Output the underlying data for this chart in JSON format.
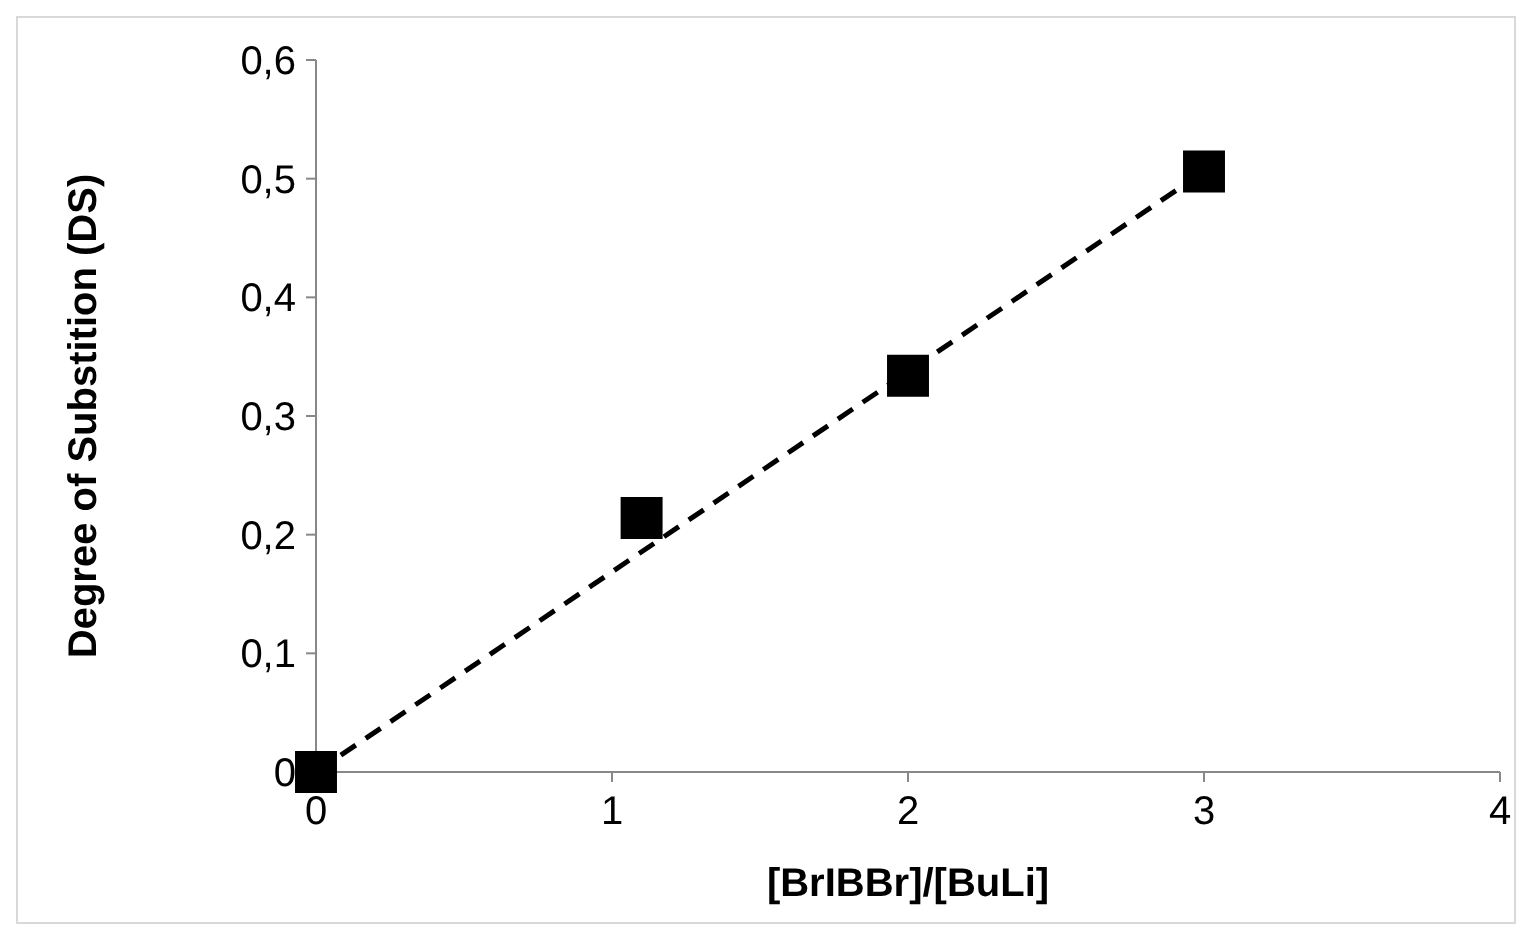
{
  "chart_data": {
    "type": "scatter",
    "xlabel": "[BrIBBr]/[BuLi]",
    "ylabel": "Degree of Substition (DS)",
    "marker": "square",
    "xlim": [
      0,
      4
    ],
    "xticks": [
      0,
      1,
      2,
      3,
      4
    ],
    "ylim": [
      0,
      0.6
    ],
    "yticks": [
      0,
      {
        "value": 0.1,
        "label": "0,1"
      },
      {
        "value": 0.2,
        "label": "0,2"
      },
      {
        "value": 0.3,
        "label": "0,3"
      },
      {
        "value": 0.4,
        "label": "0,4"
      },
      {
        "value": 0.5,
        "label": "0,5"
      },
      {
        "value": 0.6,
        "label": "0,6"
      }
    ],
    "series": [
      {
        "type": "line",
        "color": "#000000",
        "marker": "none",
        "line_style": "dashed",
        "x": [
          0,
          3
        ],
        "values": [
          0,
          0.506
        ]
      },
      {
        "color": "#000000",
        "x": [
          0,
          1.1,
          2,
          3
        ],
        "values": [
          0,
          0.214,
          0.334,
          0.506
        ]
      }
    ]
  }
}
